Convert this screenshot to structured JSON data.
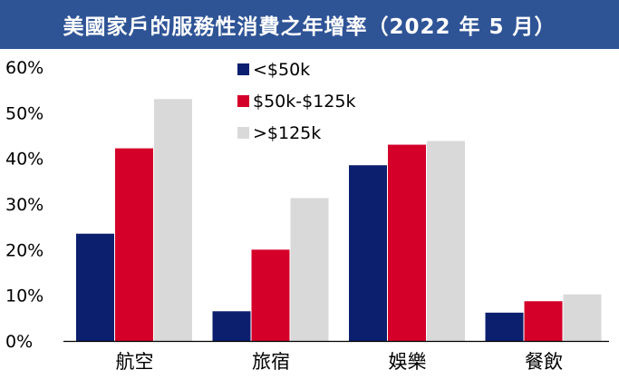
{
  "title": "美國家戶的服務性消費之年增率（2022 年 5 月）",
  "colors": {
    "title_bg": "#2f5496",
    "title_text": "#ffffff"
  },
  "chart_data": {
    "type": "bar",
    "categories": [
      "航空",
      "旅宿",
      "娛樂",
      "餐飲"
    ],
    "series": [
      {
        "name": "<$50k",
        "color": "#0b1f6e",
        "values": [
          23.5,
          6.5,
          38.5,
          6.2
        ]
      },
      {
        "name": "$50k-$125k",
        "color": "#d4002a",
        "values": [
          42.2,
          20.0,
          43.0,
          8.7
        ]
      },
      {
        "name": ">$125k",
        "color": "#d9d9d9",
        "values": [
          53.0,
          31.3,
          43.8,
          10.2
        ]
      }
    ],
    "ylim": [
      0,
      60
    ],
    "yticks": [
      "0%",
      "10%",
      "20%",
      "30%",
      "40%",
      "50%",
      "60%"
    ],
    "grid": false,
    "legend": "top-left"
  }
}
